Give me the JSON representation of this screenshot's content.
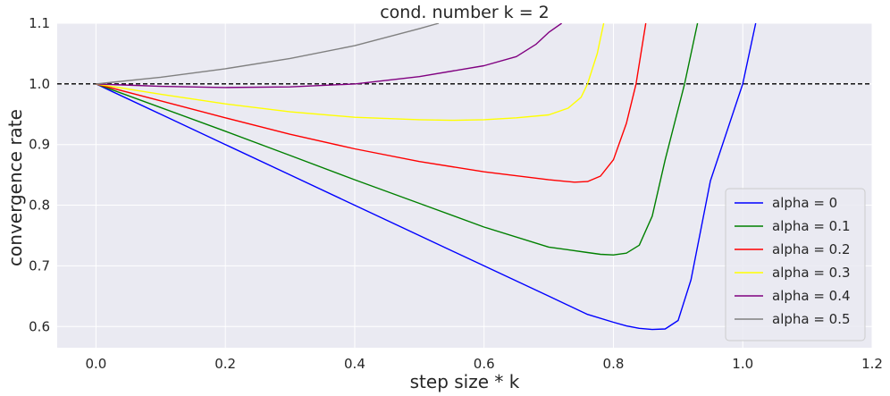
{
  "chart_data": {
    "type": "line",
    "title": "cond. number k = 2",
    "xlabel": "step size * k",
    "ylabel": "convergence rate",
    "xlim": [
      -0.06,
      1.2
    ],
    "ylim": [
      0.565,
      1.1
    ],
    "xticks": [
      "0.0",
      "0.2",
      "0.4",
      "0.6",
      "0.8",
      "1.0",
      "1.2"
    ],
    "xtick_values": [
      0.0,
      0.2,
      0.4,
      0.6,
      0.8,
      1.0,
      1.2
    ],
    "yticks": [
      "0.6",
      "0.7",
      "0.8",
      "0.9",
      "1.0",
      "1.1"
    ],
    "ytick_values": [
      0.6,
      0.7,
      0.8,
      0.9,
      1.0,
      1.1
    ],
    "grid": true,
    "legend_position": "lower right",
    "reference_line": {
      "y": 1.0,
      "style": "dashed",
      "color": "#000000"
    },
    "series": [
      {
        "name": "alpha = 0",
        "color": "#0000ff",
        "x": [
          0.0,
          0.1,
          0.2,
          0.3,
          0.4,
          0.5,
          0.6,
          0.7,
          0.76,
          0.8,
          0.82,
          0.84,
          0.86,
          0.88,
          0.9,
          0.92,
          0.95,
          1.0,
          1.02
        ],
        "y": [
          1.0,
          0.95,
          0.9,
          0.85,
          0.8,
          0.75,
          0.7,
          0.65,
          0.62,
          0.607,
          0.601,
          0.597,
          0.595,
          0.596,
          0.61,
          0.677,
          0.84,
          1.0,
          1.1
        ]
      },
      {
        "name": "alpha = 0.1",
        "color": "#008000",
        "x": [
          0.0,
          0.1,
          0.2,
          0.3,
          0.4,
          0.5,
          0.6,
          0.7,
          0.76,
          0.78,
          0.8,
          0.82,
          0.84,
          0.86,
          0.88,
          0.91,
          0.93
        ],
        "y": [
          1.0,
          0.961,
          0.922,
          0.882,
          0.842,
          0.803,
          0.764,
          0.731,
          0.722,
          0.719,
          0.718,
          0.721,
          0.734,
          0.782,
          0.875,
          1.0,
          1.1
        ]
      },
      {
        "name": "alpha = 0.2",
        "color": "#ff0000",
        "x": [
          0.0,
          0.1,
          0.2,
          0.3,
          0.4,
          0.5,
          0.6,
          0.7,
          0.74,
          0.76,
          0.78,
          0.8,
          0.82,
          0.835,
          0.85
        ],
        "y": [
          1.0,
          0.972,
          0.944,
          0.917,
          0.893,
          0.872,
          0.855,
          0.842,
          0.838,
          0.839,
          0.848,
          0.875,
          0.935,
          1.0,
          1.1
        ]
      },
      {
        "name": "alpha = 0.3",
        "color": "#ffff00",
        "x": [
          0.0,
          0.1,
          0.2,
          0.3,
          0.4,
          0.5,
          0.55,
          0.6,
          0.65,
          0.7,
          0.73,
          0.75,
          0.76,
          0.775,
          0.785
        ],
        "y": [
          1.0,
          0.983,
          0.967,
          0.954,
          0.945,
          0.941,
          0.94,
          0.941,
          0.944,
          0.949,
          0.96,
          0.978,
          1.0,
          1.05,
          1.1
        ]
      },
      {
        "name": "alpha = 0.4",
        "color": "#800080",
        "x": [
          0.0,
          0.1,
          0.2,
          0.3,
          0.4,
          0.5,
          0.6,
          0.65,
          0.68,
          0.7,
          0.72
        ],
        "y": [
          1.0,
          0.996,
          0.994,
          0.995,
          1.0,
          1.012,
          1.03,
          1.045,
          1.065,
          1.085,
          1.1
        ]
      },
      {
        "name": "alpha = 0.5",
        "color": "#808080",
        "x": [
          0.0,
          0.1,
          0.2,
          0.3,
          0.4,
          0.5,
          0.53
        ],
        "y": [
          1.0,
          1.011,
          1.025,
          1.042,
          1.063,
          1.091,
          1.1
        ]
      }
    ]
  }
}
